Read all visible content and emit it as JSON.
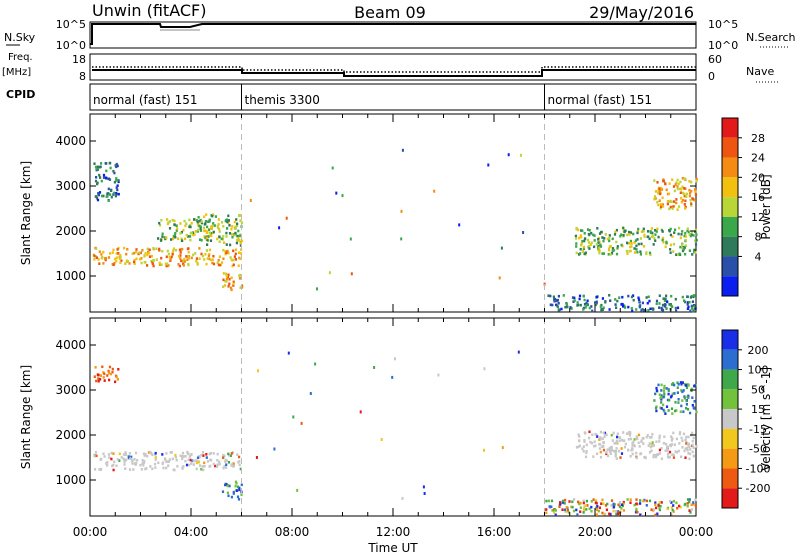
{
  "header": {
    "station": "Unwin (fitACF)",
    "beam": "Beam 09",
    "date": "29/May/2016"
  },
  "top_panels": {
    "nsky_label": "N.Sky",
    "nsky_ticks": [
      "10^5",
      "10^0"
    ],
    "nsearch_label": "N.Search",
    "nsearch_ticks": [
      "10^5",
      "10^0"
    ],
    "freq_label_1": "Freq.",
    "freq_label_2": "[MHz]",
    "freq_ticks": [
      "18",
      "8"
    ],
    "nave_label": "Nave",
    "nave_ticks": [
      "60",
      "0"
    ],
    "cpid_label": "CPID",
    "cpid_segments": [
      {
        "label": "normal (fast) 151",
        "start_hour": 0,
        "end_hour": 6
      },
      {
        "label": "themis 3300",
        "start_hour": 6,
        "end_hour": 18
      },
      {
        "label": "normal (fast) 151",
        "start_hour": 18,
        "end_hour": 24
      }
    ]
  },
  "colors": {
    "axis": "#000000",
    "dashed_divider": "#bbbbbb",
    "velocity_gray": "#c8c8c8"
  },
  "chart_data": [
    {
      "type": "heatmap",
      "panel": "power",
      "ylabel": "Slant Range [km]",
      "xlim_hours": [
        0,
        24
      ],
      "ylim_km": [
        200,
        4600
      ],
      "yticks": [
        1000,
        2000,
        3000,
        4000
      ],
      "colorbar": {
        "label": "Power [dB]",
        "ticks": [
          "28",
          "24",
          "20",
          "16",
          "12",
          "8",
          "4"
        ],
        "colors_top_to_bottom": [
          "#e21a1a",
          "#ee5511",
          "#f48c14",
          "#f2c10f",
          "#b8d638",
          "#3aa84a",
          "#2f7a5a",
          "#2a4fa8",
          "#0a1ef0"
        ]
      },
      "regions": [
        {
          "hours": [
            0.1,
            6.0
          ],
          "range_km": [
            1250,
            1650
          ],
          "level": "high"
        },
        {
          "hours": [
            0.1,
            1.1
          ],
          "range_km": [
            2700,
            3550
          ],
          "level": "low"
        },
        {
          "hours": [
            2.6,
            4.8
          ],
          "range_km": [
            1800,
            2300
          ],
          "level": "medium"
        },
        {
          "hours": [
            4.2,
            6.0
          ],
          "range_km": [
            1700,
            2400
          ],
          "level": "medium"
        },
        {
          "hours": [
            5.2,
            6.0
          ],
          "range_km": [
            700,
            1100
          ],
          "level": "high"
        },
        {
          "hours": [
            18.0,
            24.0
          ],
          "range_km": [
            250,
            600
          ],
          "level": "low"
        },
        {
          "hours": [
            19.2,
            24.0
          ],
          "range_km": [
            1500,
            2100
          ],
          "level": "medium"
        },
        {
          "hours": [
            22.3,
            24.0
          ],
          "range_km": [
            2500,
            3200
          ],
          "level": "high"
        }
      ]
    },
    {
      "type": "heatmap",
      "panel": "velocity",
      "ylabel": "Slant Range [km]",
      "xlabel": "Time UT",
      "xlim_hours": [
        0,
        24
      ],
      "ylim_km": [
        200,
        4600
      ],
      "yticks": [
        1000,
        2000,
        3000,
        4000
      ],
      "xtick_labels": [
        "00:00",
        "04:00",
        "08:00",
        "12:00",
        "16:00",
        "20:00",
        "00:00"
      ],
      "colorbar": {
        "label": "Velocity [m s^-1]",
        "ticks": [
          "200",
          "100",
          "50",
          "15",
          "-15",
          "-50",
          "-100",
          "-200"
        ],
        "colors_top_to_bottom": [
          "#1a2ee8",
          "#2b6ed0",
          "#3fa84a",
          "#72c23c",
          "#c8c8c8",
          "#f2c81e",
          "#f49a14",
          "#ee5a12",
          "#e21a1a"
        ]
      },
      "regions": [
        {
          "hours": [
            0.1,
            6.0
          ],
          "range_km": [
            1250,
            1650
          ],
          "velocity": "near-zero"
        },
        {
          "hours": [
            0.1,
            1.1
          ],
          "range_km": [
            3200,
            3550
          ],
          "velocity": "negative"
        },
        {
          "hours": [
            5.2,
            6.0
          ],
          "range_km": [
            600,
            1000
          ],
          "velocity": "positive"
        },
        {
          "hours": [
            18.0,
            24.0
          ],
          "range_km": [
            250,
            600
          ],
          "velocity": "mixed"
        },
        {
          "hours": [
            19.2,
            24.0
          ],
          "range_km": [
            1500,
            2100
          ],
          "velocity": "near-zero"
        },
        {
          "hours": [
            22.3,
            24.0
          ],
          "range_km": [
            2500,
            3200
          ],
          "velocity": "positive"
        }
      ]
    }
  ]
}
